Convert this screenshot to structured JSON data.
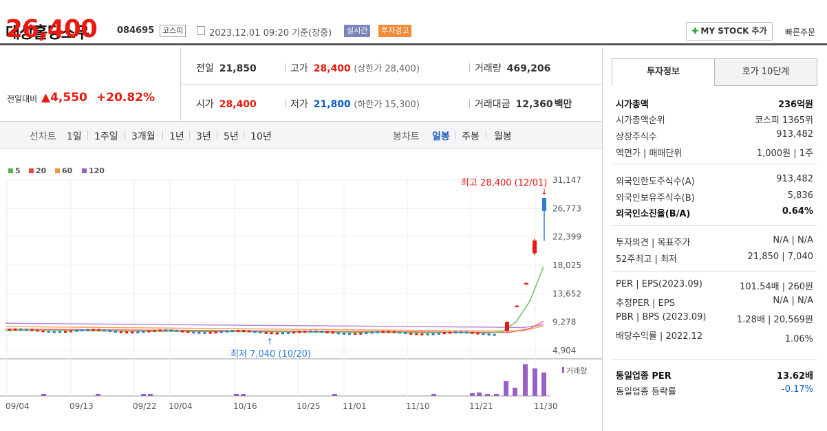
{
  "header": {
    "name": "대상홀딩스우",
    "code": "084695",
    "market": "코스피",
    "datetime": "2023.12.01 09:20 기준(장중)",
    "realtime": "실시간",
    "warning": "투자경고",
    "mystock": "MY STOCK 추가",
    "quick": "빠른주문"
  },
  "quote": {
    "current": "26,400",
    "change_label": "전일대비",
    "change_value": "4,550",
    "change_pct": "+20.82%",
    "prev_label": "전일",
    "prev": "21,850",
    "high_label": "고가",
    "high": "28,400",
    "high_limit": "(상한가 28,400)",
    "volume_label": "거래량",
    "volume": "469,206",
    "open_label": "시가",
    "open": "28,400",
    "low_label": "저가",
    "low": "21,800",
    "low_limit": "(하한가 15,300)",
    "value_label": "거래대금",
    "value": "12,360",
    "value_unit": "백만"
  },
  "periods": {
    "line_label": "선차트",
    "line_items": [
      "1일",
      "1주일",
      "3개월",
      "1년",
      "3년",
      "5년",
      "10년"
    ],
    "candle_label": "봉차트",
    "candle_items": [
      "일봉",
      "주봉",
      "월봉"
    ],
    "active": "일봉"
  },
  "chart_data": {
    "type": "candlestick",
    "legend": [
      {
        "name": "5",
        "color": "#4cb648"
      },
      {
        "name": "20",
        "color": "#e8493b"
      },
      {
        "name": "60",
        "color": "#f5923d"
      },
      {
        "name": "120",
        "color": "#9a60c8"
      }
    ],
    "y_ticks": [
      "31,147",
      "26,773",
      "22,399",
      "18,025",
      "13,652",
      "9,278",
      "4,904"
    ],
    "ylim": [
      4904,
      31147
    ],
    "x_ticks": [
      "09/04",
      "09/13",
      "09/22",
      "10/04",
      "10/16",
      "10/25",
      "11/01",
      "11/10",
      "11/21",
      "11/30"
    ],
    "high_note": "최고 28,400 (12/01)",
    "low_note": "최저 7,040 (10/20)",
    "volume_label": "거래량",
    "recent_candles": [
      {
        "o": 7900,
        "c": 9300,
        "h": 9400,
        "l": 7800
      },
      {
        "o": 11700,
        "c": 11800,
        "h": 11900,
        "l": 11600
      },
      {
        "o": 15200,
        "c": 15300,
        "h": 15400,
        "l": 15100
      },
      {
        "o": 19900,
        "c": 21850,
        "h": 22100,
        "l": 19600
      },
      {
        "o": 28400,
        "c": 26400,
        "h": 28400,
        "l": 21800
      }
    ]
  },
  "side": {
    "tab1": "투자정보",
    "tab2": "호가 10단계",
    "rows": [
      {
        "l": "시가총액",
        "v": "236억원",
        "bold": true
      },
      {
        "l": "시가총액순위",
        "v": "코스피 1365위"
      },
      {
        "l": "상장주식수",
        "v": "913,482"
      },
      {
        "l": "액면가 | 매매단위",
        "v": "1,000원 | 1주"
      },
      {
        "l": "외국인한도주식수(A)",
        "v": "913,482"
      },
      {
        "l": "외국인보유주식수(B)",
        "v": "5,836"
      },
      {
        "l": "외국인소진율(B/A)",
        "v": "0.64%",
        "bold": true
      },
      {
        "l": "투자의견 | 목표주가",
        "v": "N/A | N/A"
      },
      {
        "l": "52주최고 | 최저",
        "v": "21,850 | 7,040"
      },
      {
        "l": "PER | EPS(2023.09)",
        "v": "101.54배 | 260원"
      },
      {
        "l": "추정PER | EPS",
        "v": "N/A | N/A"
      },
      {
        "l": "PBR | BPS (2023.09)",
        "v": "1.28배 | 20,569원"
      },
      {
        "l": "배당수익률 | 2022.12",
        "v": "1.06%"
      },
      {
        "l": "동일업종 PER",
        "v": "13.62배",
        "bold": true
      },
      {
        "l": "동일업종 등락률",
        "v": "-0.17%"
      }
    ]
  }
}
